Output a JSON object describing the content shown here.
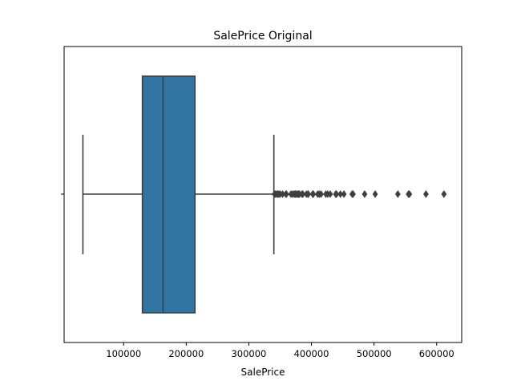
{
  "chart_data": {
    "type": "box",
    "title": "SalePrice Original",
    "xlabel": "SalePrice",
    "ylabel": "",
    "xlim": [
      5000,
      640000
    ],
    "xticks": [
      100000,
      200000,
      300000,
      400000,
      500000,
      600000
    ],
    "xtick_labels": [
      "100000",
      "200000",
      "300000",
      "400000",
      "500000",
      "600000"
    ],
    "box": {
      "whisker_low": 35000,
      "q1": 129975,
      "median": 163000,
      "q3": 214000,
      "whisker_high": 340000,
      "fill_color": "#3274a1",
      "line_color": "#3f3f3f"
    },
    "outliers": [
      341000,
      342643,
      345000,
      346000,
      348000,
      350000,
      354000,
      359100,
      360000,
      367294,
      369900,
      372500,
      374000,
      375000,
      377426,
      378500,
      380000,
      381000,
      385000,
      386250,
      392000,
      394432,
      395000,
      402000,
      403000,
      410000,
      412500,
      415298,
      423000,
      426000,
      430000,
      438780,
      440000,
      446261,
      451950,
      465000,
      466500,
      485000,
      501837,
      538000,
      555000,
      556581,
      582933,
      611657
    ]
  }
}
